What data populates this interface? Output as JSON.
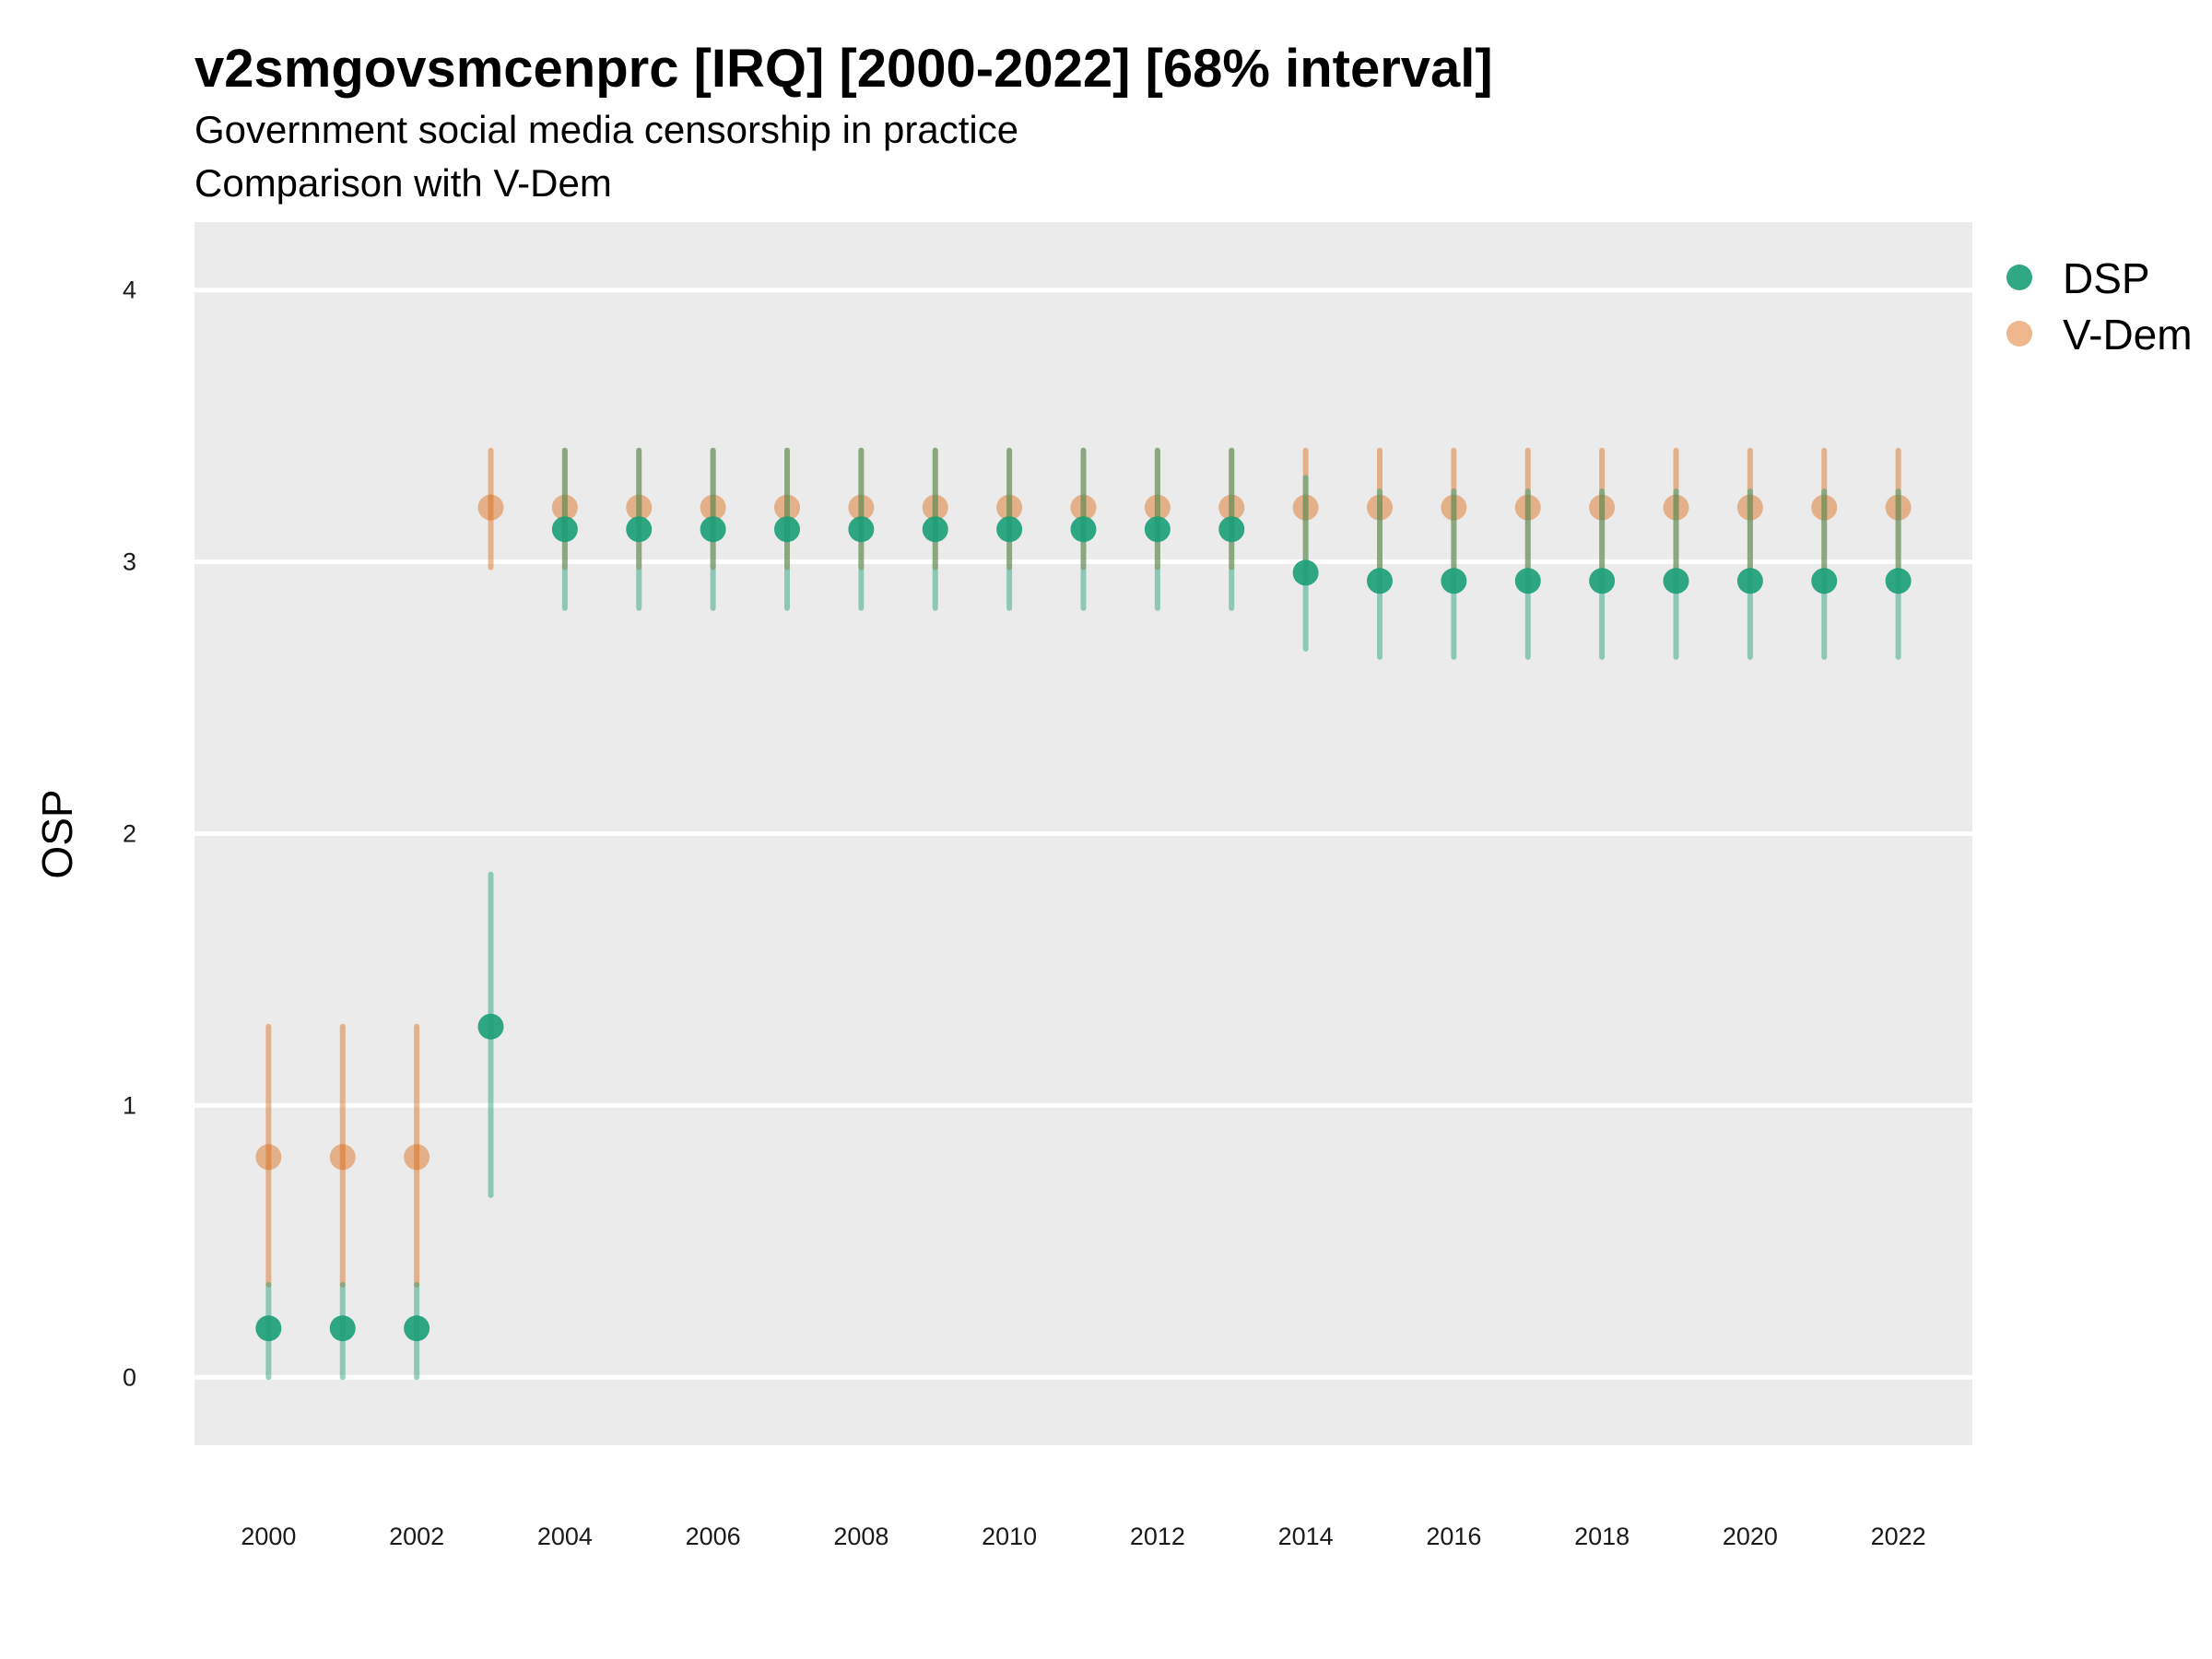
{
  "chart_data": {
    "type": "scatter",
    "title": "v2smgovsmcenprc [IRQ] [2000-2022] [68% interval]",
    "subtitle": "Government social media censorship in practice",
    "caption_line": "Comparison with V-Dem",
    "ylabel": "OSP",
    "xlabel": "",
    "ylim": [
      -0.25,
      4.25
    ],
    "xlim": [
      1999,
      2023
    ],
    "yticks": [
      0,
      1,
      2,
      3,
      4
    ],
    "xticks": [
      2000,
      2002,
      2004,
      2006,
      2008,
      2010,
      2012,
      2014,
      2016,
      2018,
      2020,
      2022
    ],
    "grid": true,
    "legend_position": "right",
    "series": [
      {
        "name": "DSP",
        "color": "#1b9e77",
        "x": [
          2000,
          2001,
          2002,
          2003,
          2004,
          2005,
          2006,
          2007,
          2008,
          2009,
          2010,
          2011,
          2012,
          2013,
          2014,
          2015,
          2016,
          2017,
          2018,
          2019,
          2020,
          2021,
          2022
        ],
        "y": [
          0.18,
          0.18,
          0.18,
          1.29,
          3.12,
          3.12,
          3.12,
          3.12,
          3.12,
          3.12,
          3.12,
          3.12,
          3.12,
          3.12,
          2.96,
          2.93,
          2.93,
          2.93,
          2.93,
          2.93,
          2.93,
          2.93,
          2.93
        ],
        "low": [
          0.0,
          0.0,
          0.0,
          0.67,
          2.83,
          2.83,
          2.83,
          2.83,
          2.83,
          2.83,
          2.83,
          2.83,
          2.83,
          2.83,
          2.68,
          2.65,
          2.65,
          2.65,
          2.65,
          2.65,
          2.65,
          2.65,
          2.65
        ],
        "high": [
          0.34,
          0.34,
          0.34,
          1.85,
          3.41,
          3.41,
          3.41,
          3.41,
          3.41,
          3.41,
          3.41,
          3.41,
          3.41,
          3.41,
          3.31,
          3.26,
          3.26,
          3.26,
          3.26,
          3.26,
          3.26,
          3.26,
          3.26
        ]
      },
      {
        "name": "V-Dem",
        "color": "#d95f02",
        "x": [
          2000,
          2001,
          2002,
          2003,
          2004,
          2005,
          2006,
          2007,
          2008,
          2009,
          2010,
          2011,
          2012,
          2013,
          2014,
          2015,
          2016,
          2017,
          2018,
          2019,
          2020,
          2021,
          2022
        ],
        "y": [
          0.81,
          0.81,
          0.81,
          3.2,
          3.2,
          3.2,
          3.2,
          3.2,
          3.2,
          3.2,
          3.2,
          3.2,
          3.2,
          3.2,
          3.2,
          3.2,
          3.2,
          3.2,
          3.2,
          3.2,
          3.2,
          3.2,
          3.2
        ],
        "low": [
          0.34,
          0.34,
          0.34,
          2.98,
          2.98,
          2.98,
          2.98,
          2.98,
          2.98,
          2.98,
          2.98,
          2.98,
          2.98,
          2.98,
          2.98,
          2.98,
          2.98,
          2.98,
          2.98,
          2.98,
          2.98,
          2.98,
          2.98
        ],
        "high": [
          1.29,
          1.29,
          1.29,
          3.41,
          3.41,
          3.41,
          3.41,
          3.41,
          3.41,
          3.41,
          3.41,
          3.41,
          3.41,
          3.41,
          3.41,
          3.41,
          3.41,
          3.41,
          3.41,
          3.41,
          3.41,
          3.41,
          3.41
        ]
      }
    ]
  }
}
